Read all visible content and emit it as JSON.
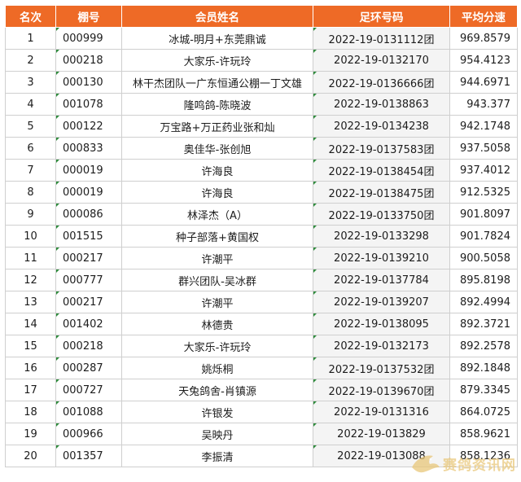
{
  "table": {
    "headers": {
      "rank": "名次",
      "shed": "棚号",
      "member": "会员姓名",
      "ring": "足环号码",
      "speed": "平均分速"
    },
    "rows": [
      {
        "rank": "1",
        "shed": "000999",
        "member": "冰城-明月+东莞鼎诚",
        "ring": "2022-19-0131112团",
        "speed": "969.8579"
      },
      {
        "rank": "2",
        "shed": "000218",
        "member": "大家乐-许玩玲",
        "ring": "2022-19-0132170",
        "speed": "954.4123"
      },
      {
        "rank": "3",
        "shed": "000130",
        "member": "林干杰团队一广东恒通公棚一丁文雄",
        "ring": "2022-19-0136666团",
        "speed": "944.6971"
      },
      {
        "rank": "4",
        "shed": "001078",
        "member": "隆鸣鸽-陈晓波",
        "ring": "2022-19-0138863",
        "speed": "943.377"
      },
      {
        "rank": "5",
        "shed": "000122",
        "member": "万宝路+万正药业张和灿",
        "ring": "2022-19-0134238",
        "speed": "942.1748"
      },
      {
        "rank": "6",
        "shed": "000833",
        "member": "奥佳华-张创旭",
        "ring": "2022-19-0137583团",
        "speed": "937.5058"
      },
      {
        "rank": "7",
        "shed": "000019",
        "member": "许海良",
        "ring": "2022-19-0138454团",
        "speed": "937.4012"
      },
      {
        "rank": "8",
        "shed": "000019",
        "member": "许海良",
        "ring": "2022-19-0138475团",
        "speed": "912.5325"
      },
      {
        "rank": "9",
        "shed": "000086",
        "member": "林泽杰（A）",
        "ring": "2022-19-0133750团",
        "speed": "901.8097"
      },
      {
        "rank": "10",
        "shed": "001515",
        "member": "种子部落+黄国权",
        "ring": "2022-19-0133298",
        "speed": "901.7824"
      },
      {
        "rank": "11",
        "shed": "000217",
        "member": "许潮平",
        "ring": "2022-19-0139210",
        "speed": "900.5058"
      },
      {
        "rank": "12",
        "shed": "000777",
        "member": "群兴团队-吴冰群",
        "ring": "2022-19-0137784",
        "speed": "895.8198"
      },
      {
        "rank": "13",
        "shed": "000217",
        "member": "许潮平",
        "ring": "2022-19-0139207",
        "speed": "892.4994"
      },
      {
        "rank": "14",
        "shed": "001402",
        "member": "林德贵",
        "ring": "2022-19-0138095",
        "speed": "892.3721"
      },
      {
        "rank": "15",
        "shed": "000218",
        "member": "大家乐-许玩玲",
        "ring": "2022-19-0132173",
        "speed": "892.2578"
      },
      {
        "rank": "16",
        "shed": "000287",
        "member": "姚烁桐",
        "ring": "2022-19-0137532团",
        "speed": "892.1848"
      },
      {
        "rank": "17",
        "shed": "000727",
        "member": "天兔鸽舍-肖镇源",
        "ring": "2022-19-0139670团",
        "speed": "879.3345"
      },
      {
        "rank": "18",
        "shed": "001088",
        "member": "许银发",
        "ring": "2022-19-0131316",
        "speed": "864.0725"
      },
      {
        "rank": "19",
        "shed": "000966",
        "member": "吴映丹",
        "ring": "2022-19-013829",
        "speed": "858.9621"
      },
      {
        "rank": "20",
        "shed": "001357",
        "member": "李振清",
        "ring": "2022-19-013088",
        "speed": "858.1236"
      }
    ]
  },
  "watermark": {
    "text": "赛鸽资讯网",
    "icon": "pigeon-icon",
    "color": "#e9c77a"
  },
  "colors": {
    "header_bg": "#ee6a26",
    "header_text": "#ffffff",
    "grid": "#cfcfcf",
    "ring_col_bg": "#f4f4f4",
    "cell_flag": "#2e8b3c"
  }
}
